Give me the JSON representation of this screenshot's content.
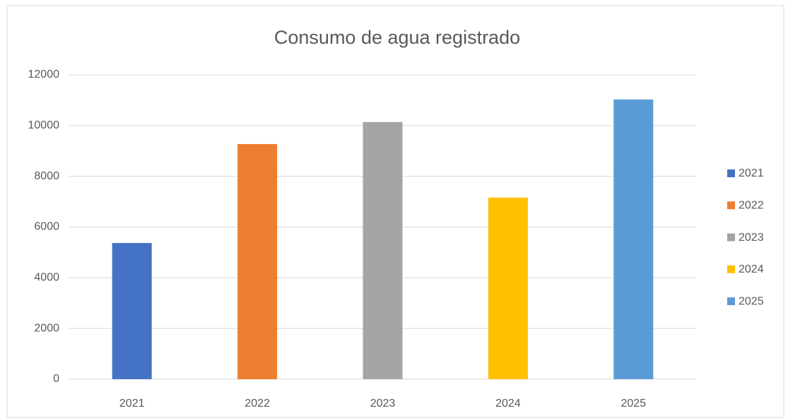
{
  "chart_data": {
    "type": "bar",
    "title": "Consumo de agua registrado",
    "categories": [
      "2021",
      "2022",
      "2023",
      "2024",
      "2025"
    ],
    "values": [
      5370,
      9270,
      10140,
      7160,
      11030
    ],
    "colors": [
      "#4472c4",
      "#ed7d31",
      "#a5a5a5",
      "#ffc000",
      "#5b9bd5"
    ],
    "ylim": [
      0,
      12000
    ],
    "yticks": [
      0,
      2000,
      4000,
      6000,
      8000,
      10000,
      12000
    ],
    "grid": true,
    "legend": "right"
  }
}
